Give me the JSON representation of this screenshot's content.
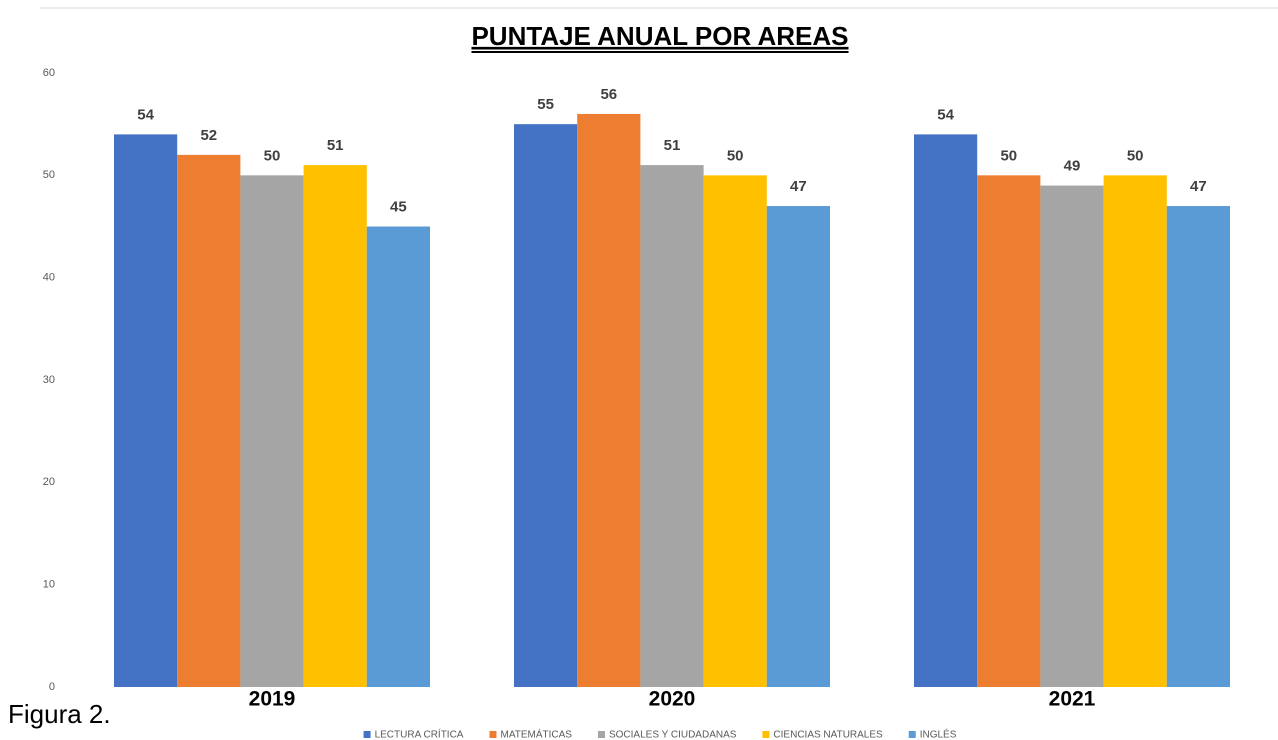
{
  "chart_data": {
    "type": "bar",
    "title": "PUNTAJE ANUAL POR AREAS",
    "categories": [
      "2019",
      "2020",
      "2021"
    ],
    "series": [
      {
        "name": "LECTURA CRÍTICA",
        "color": "#4472c4",
        "values": [
          54,
          55,
          54
        ]
      },
      {
        "name": "MATEMÁTICAS",
        "color": "#ed7d31",
        "values": [
          52,
          56,
          50
        ]
      },
      {
        "name": "SOCIALES Y CIUDADANAS",
        "color": "#a5a5a5",
        "values": [
          50,
          51,
          49
        ]
      },
      {
        "name": "CIENCIAS NATURALES",
        "color": "#ffc000",
        "values": [
          51,
          50,
          50
        ]
      },
      {
        "name": "INGLÉS",
        "color": "#5b9bd5",
        "values": [
          45,
          47,
          47
        ]
      }
    ],
    "ylim": [
      0,
      60
    ],
    "yticks": [
      0,
      10,
      20,
      30,
      40,
      50,
      60
    ],
    "grid": false,
    "legend": "bottom",
    "annotations": [
      "Figura 2."
    ]
  }
}
